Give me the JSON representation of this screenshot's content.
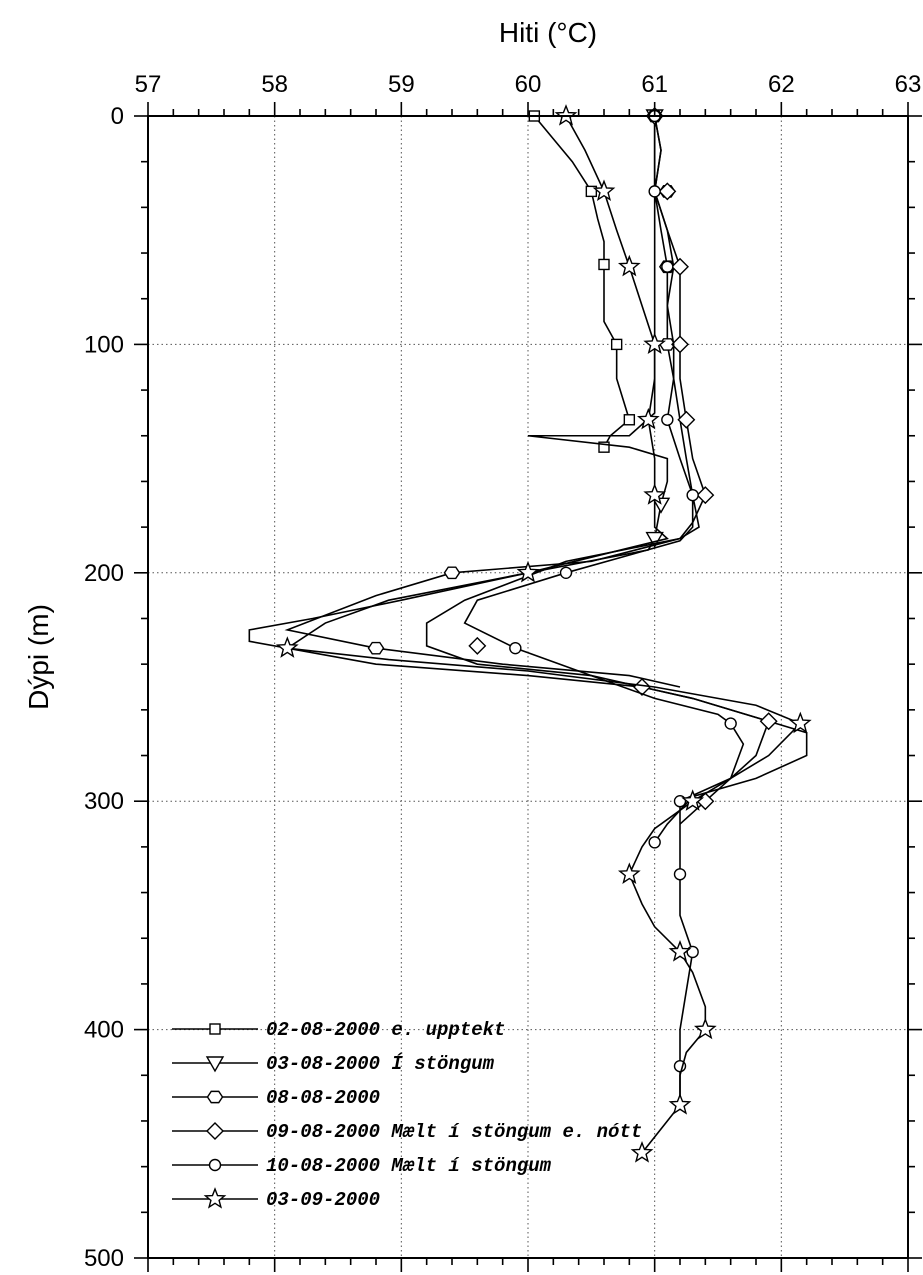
{
  "chart_data": {
    "type": "line",
    "title": "",
    "xlabel": "Hiti (°C)",
    "ylabel": "Dýpi (m)",
    "xlim": [
      57,
      63
    ],
    "ylim": [
      500,
      0
    ],
    "x_axis_position": "top",
    "y_inverted": true,
    "grid": true,
    "legend_position": "bottom-left",
    "x_ticks": [
      57,
      58,
      59,
      60,
      61,
      62,
      63
    ],
    "y_ticks": [
      0,
      100,
      200,
      300,
      400,
      500
    ],
    "series": [
      {
        "name": "02-08-2000 e. upptekt",
        "marker": "square",
        "points": [
          [
            60.05,
            0
          ],
          [
            60.2,
            10
          ],
          [
            60.35,
            20
          ],
          [
            60.5,
            33
          ],
          [
            60.55,
            45
          ],
          [
            60.6,
            55
          ],
          [
            60.6,
            65
          ],
          [
            60.6,
            75
          ],
          [
            60.6,
            90
          ],
          [
            60.7,
            100
          ],
          [
            60.7,
            115
          ],
          [
            60.8,
            133
          ],
          [
            60.65,
            140
          ],
          [
            60.6,
            145
          ]
        ],
        "marker_points": [
          [
            60.05,
            0
          ],
          [
            60.5,
            33
          ],
          [
            60.6,
            65
          ],
          [
            60.7,
            100
          ],
          [
            60.8,
            133
          ],
          [
            60.6,
            145
          ]
        ]
      },
      {
        "name": "03-08-2000 Í stöngum",
        "marker": "triangle-down",
        "points": [
          [
            61.0,
            0
          ],
          [
            61.0,
            30
          ],
          [
            61.0,
            60
          ],
          [
            61.0,
            100
          ],
          [
            61.0,
            130
          ],
          [
            60.8,
            140
          ],
          [
            60.0,
            140
          ],
          [
            60.8,
            145
          ],
          [
            61.1,
            150
          ],
          [
            61.1,
            160
          ],
          [
            61.05,
            170
          ],
          [
            61.0,
            185
          ],
          [
            60.95,
            190
          ],
          [
            60.0,
            200
          ],
          [
            59.0,
            212
          ],
          [
            58.3,
            220
          ],
          [
            57.8,
            225
          ],
          [
            57.8,
            230
          ],
          [
            58.8,
            240
          ],
          [
            60.0,
            245
          ],
          [
            60.9,
            250
          ],
          [
            61.3,
            255
          ],
          [
            61.9,
            265
          ],
          [
            62.2,
            270
          ],
          [
            62.2,
            280
          ],
          [
            61.8,
            290
          ],
          [
            61.3,
            298
          ],
          [
            61.1,
            310
          ],
          [
            61.0,
            318
          ]
        ],
        "marker_points": [
          [
            61.0,
            0
          ],
          [
            61.05,
            170
          ],
          [
            61.0,
            185
          ]
        ]
      },
      {
        "name": "08-08-2000",
        "marker": "hexagon",
        "points": [
          [
            61.0,
            0
          ],
          [
            61.0,
            15
          ],
          [
            61.0,
            33
          ],
          [
            61.1,
            50
          ],
          [
            61.15,
            66
          ],
          [
            61.1,
            83
          ],
          [
            61.1,
            100
          ],
          [
            61.15,
            115
          ],
          [
            61.2,
            133
          ],
          [
            61.25,
            150
          ],
          [
            61.3,
            166
          ],
          [
            61.35,
            180
          ],
          [
            61.2,
            185
          ],
          [
            60.5,
            195
          ],
          [
            59.4,
            200
          ],
          [
            58.8,
            210
          ],
          [
            58.1,
            225
          ],
          [
            58.8,
            233
          ],
          [
            59.8,
            240
          ],
          [
            60.8,
            245
          ],
          [
            61.2,
            250
          ]
        ],
        "marker_points": [
          [
            61.0,
            0
          ],
          [
            61.1,
            33
          ],
          [
            61.1,
            66
          ],
          [
            61.1,
            100
          ],
          [
            59.4,
            200
          ],
          [
            58.8,
            233
          ]
        ]
      },
      {
        "name": "09-08-2000 Mælt í stöngum e. nótt",
        "marker": "diamond",
        "points": [
          [
            61.0,
            0
          ],
          [
            61.05,
            15
          ],
          [
            61.0,
            33
          ],
          [
            61.1,
            50
          ],
          [
            61.2,
            66
          ],
          [
            61.2,
            83
          ],
          [
            61.2,
            100
          ],
          [
            61.2,
            115
          ],
          [
            61.25,
            133
          ],
          [
            61.3,
            150
          ],
          [
            61.4,
            166
          ],
          [
            61.3,
            178
          ],
          [
            61.2,
            185
          ],
          [
            60.3,
            195
          ],
          [
            59.5,
            212
          ],
          [
            59.2,
            222
          ],
          [
            59.2,
            232
          ],
          [
            59.6,
            240
          ],
          [
            60.5,
            245
          ],
          [
            60.9,
            250
          ],
          [
            61.3,
            255
          ],
          [
            61.9,
            265
          ],
          [
            61.8,
            280
          ],
          [
            61.4,
            300
          ],
          [
            61.2,
            310
          ]
        ],
        "marker_points": [
          [
            61.0,
            0
          ],
          [
            61.1,
            33
          ],
          [
            61.2,
            66
          ],
          [
            61.2,
            100
          ],
          [
            61.25,
            133
          ],
          [
            61.4,
            166
          ],
          [
            59.6,
            232
          ],
          [
            60.9,
            250
          ],
          [
            61.9,
            265
          ],
          [
            61.4,
            300
          ]
        ]
      },
      {
        "name": "10-08-2000 Mælt í stöngum",
        "marker": "circle",
        "points": [
          [
            61.0,
            0
          ],
          [
            61.05,
            15
          ],
          [
            61.0,
            33
          ],
          [
            61.05,
            50
          ],
          [
            61.1,
            66
          ],
          [
            61.1,
            83
          ],
          [
            61.15,
            100
          ],
          [
            61.15,
            115
          ],
          [
            61.1,
            133
          ],
          [
            61.2,
            150
          ],
          [
            61.3,
            166
          ],
          [
            61.3,
            180
          ],
          [
            61.2,
            186
          ],
          [
            60.3,
            200
          ],
          [
            59.6,
            212
          ],
          [
            59.5,
            222
          ],
          [
            59.9,
            233
          ],
          [
            60.5,
            245
          ],
          [
            61.0,
            255
          ],
          [
            61.5,
            262
          ],
          [
            61.6,
            266
          ],
          [
            61.7,
            275
          ],
          [
            61.6,
            290
          ],
          [
            61.2,
            300
          ],
          [
            61.2,
            318
          ],
          [
            61.2,
            332
          ],
          [
            61.2,
            350
          ],
          [
            61.3,
            366
          ],
          [
            61.2,
            400
          ],
          [
            61.2,
            416
          ],
          [
            61.2,
            433
          ]
        ],
        "marker_points": [
          [
            61.0,
            0
          ],
          [
            61.0,
            33
          ],
          [
            61.1,
            66
          ],
          [
            61.1,
            133
          ],
          [
            61.3,
            166
          ],
          [
            60.3,
            200
          ],
          [
            59.9,
            233
          ],
          [
            61.6,
            266
          ],
          [
            61.2,
            300
          ],
          [
            61.0,
            318
          ],
          [
            61.2,
            332
          ],
          [
            61.3,
            366
          ],
          [
            61.2,
            416
          ]
        ]
      },
      {
        "name": "03-09-2000",
        "marker": "star",
        "points": [
          [
            60.3,
            0
          ],
          [
            60.45,
            15
          ],
          [
            60.6,
            33
          ],
          [
            60.7,
            50
          ],
          [
            60.8,
            66
          ],
          [
            60.9,
            83
          ],
          [
            61.0,
            100
          ],
          [
            61.0,
            115
          ],
          [
            60.95,
            133
          ],
          [
            61.0,
            150
          ],
          [
            61.0,
            166
          ],
          [
            61.0,
            180
          ],
          [
            61.1,
            185
          ],
          [
            60.0,
            200
          ],
          [
            58.9,
            212
          ],
          [
            58.4,
            222
          ],
          [
            58.1,
            233
          ],
          [
            58.9,
            238
          ],
          [
            60.0,
            243
          ],
          [
            61.0,
            250
          ],
          [
            61.8,
            258
          ],
          [
            62.15,
            266
          ],
          [
            61.9,
            280
          ],
          [
            61.3,
            300
          ],
          [
            61.0,
            312
          ],
          [
            60.9,
            320
          ],
          [
            60.8,
            332
          ],
          [
            60.9,
            345
          ],
          [
            61.0,
            355
          ],
          [
            61.2,
            366
          ],
          [
            61.3,
            375
          ],
          [
            61.4,
            390
          ],
          [
            61.4,
            400
          ],
          [
            61.25,
            410
          ],
          [
            61.2,
            420
          ],
          [
            61.2,
            433
          ],
          [
            61.1,
            440
          ],
          [
            60.9,
            454
          ]
        ],
        "marker_points": [
          [
            60.3,
            0
          ],
          [
            60.6,
            33
          ],
          [
            60.8,
            66
          ],
          [
            61.0,
            100
          ],
          [
            60.95,
            133
          ],
          [
            61.0,
            166
          ],
          [
            60.0,
            200
          ],
          [
            58.1,
            233
          ],
          [
            62.15,
            266
          ],
          [
            61.3,
            300
          ],
          [
            60.8,
            332
          ],
          [
            61.2,
            366
          ],
          [
            61.4,
            400
          ],
          [
            61.2,
            433
          ],
          [
            60.9,
            454
          ]
        ]
      }
    ]
  }
}
